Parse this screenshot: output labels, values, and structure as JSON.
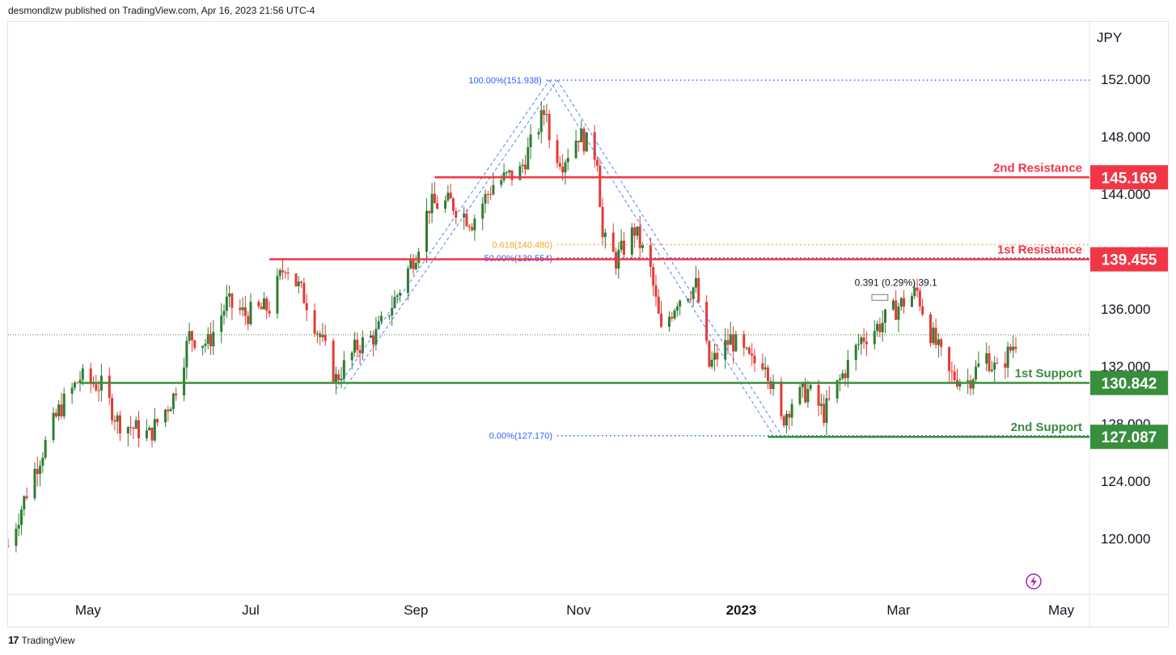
{
  "header": {
    "published": "desmondlzw published on TradingView.com, Apr 16, 2023 21:56 UTC-4"
  },
  "footer": {
    "brand": "TradingView",
    "logo_glyph": "17"
  },
  "chart_data": {
    "type": "candlestick",
    "currency_label": "JPY",
    "y_ticks": [
      "152.000",
      "148.000",
      "144.000",
      "140.000",
      "136.000",
      "132.000",
      "128.000",
      "124.000",
      "120.000"
    ],
    "y_tick_values": [
      152,
      148,
      144,
      140,
      136,
      132,
      128,
      124,
      120
    ],
    "ylim": [
      116.5,
      156.2
    ],
    "x_ticks": [
      "May",
      "Jul",
      "Sep",
      "Nov",
      "2023",
      "Mar",
      "May"
    ],
    "x_tick_bold": [
      false,
      false,
      false,
      false,
      true,
      false,
      false
    ],
    "x_tick_dates": [
      "2022-05-01",
      "2022-07-01",
      "2022-09-01",
      "2022-11-01",
      "2023-01-01",
      "2023-03-01",
      "2023-05-01"
    ],
    "levels": [
      {
        "label": "2nd Resistance",
        "value": "145.169",
        "price": 145.169,
        "color": "#f23645",
        "from": "2022-09-08",
        "kind": "resistance"
      },
      {
        "label": "1st Resistance",
        "value": "139.455",
        "price": 139.455,
        "color": "#f23645",
        "from": "2022-07-08",
        "kind": "resistance"
      },
      {
        "label": "1st Support",
        "value": "130.842",
        "price": 130.842,
        "color": "#388e3c",
        "from": "2022-04-28",
        "kind": "support"
      },
      {
        "label": "2nd Support",
        "value": "127.087",
        "price": 127.087,
        "color": "#388e3c",
        "from": "2023-01-11",
        "kind": "support"
      }
    ],
    "fib_levels": [
      {
        "label": "100.00%(151.938)",
        "price": 151.938,
        "color": "#2962ff",
        "from": "2022-10-20"
      },
      {
        "label": "0.618(140.480)",
        "price": 140.48,
        "color": "#f5a623",
        "from": "2022-10-24"
      },
      {
        "label": "50.00%(139.554)",
        "price": 139.554,
        "color": "#2962ff",
        "from": "2022-10-24"
      },
      {
        "label": "0.00%(127.170)",
        "price": 127.17,
        "color": "#2962ff",
        "from": "2022-10-24"
      }
    ],
    "fib_left_anchor_date": "2022-10-10",
    "trend_channel_1": {
      "from": [
        "2022-08-02",
        130.4
      ],
      "to": [
        "2022-10-21",
        151.94
      ]
    },
    "trend_channel_2": {
      "from": [
        "2022-10-21",
        151.94
      ],
      "to": [
        "2023-01-13",
        127.2
      ]
    },
    "last_price": 134.2,
    "measure_label": "0.391 (0.29%) 39.1",
    "measure_anchor": [
      "2023-02-28",
      137.6
    ],
    "measure_box": {
      "from": [
        "2023-02-19",
        136.6
      ],
      "to": [
        "2023-02-25",
        137.0
      ]
    },
    "range_start": "2022-04-01",
    "range_end": "2023-05-11",
    "anchors": [
      [
        "2022-04-01",
        119.5
      ],
      [
        "2022-04-10",
        124.3
      ],
      [
        "2022-04-20",
        128.9
      ],
      [
        "2022-04-28",
        131.2
      ],
      [
        "2022-05-06",
        130.6
      ],
      [
        "2022-05-12",
        128.2
      ],
      [
        "2022-05-24",
        127.2
      ],
      [
        "2022-06-02",
        129.9
      ],
      [
        "2022-06-08",
        134.1
      ],
      [
        "2022-06-15",
        133.6
      ],
      [
        "2022-06-22",
        136.4
      ],
      [
        "2022-06-29",
        135.6
      ],
      [
        "2022-07-08",
        136.1
      ],
      [
        "2022-07-14",
        139.2
      ],
      [
        "2022-07-22",
        136.5
      ],
      [
        "2022-08-02",
        131.1
      ],
      [
        "2022-08-10",
        133.4
      ],
      [
        "2022-08-17",
        134.2
      ],
      [
        "2022-08-25",
        137.0
      ],
      [
        "2022-09-01",
        140.0
      ],
      [
        "2022-09-06",
        143.2
      ],
      [
        "2022-09-14",
        143.4
      ],
      [
        "2022-09-22",
        142.1
      ],
      [
        "2022-09-30",
        144.7
      ],
      [
        "2022-10-10",
        145.6
      ],
      [
        "2022-10-20",
        150.1
      ],
      [
        "2022-10-21",
        147.6
      ],
      [
        "2022-10-26",
        146.3
      ],
      [
        "2022-11-01",
        148.2
      ],
      [
        "2022-11-08",
        146.6
      ],
      [
        "2022-11-10",
        140.9
      ],
      [
        "2022-11-15",
        139.4
      ],
      [
        "2022-11-22",
        141.5
      ],
      [
        "2022-11-28",
        138.6
      ],
      [
        "2022-12-02",
        134.3
      ],
      [
        "2022-12-08",
        136.7
      ],
      [
        "2022-12-15",
        137.6
      ],
      [
        "2022-12-20",
        132.0
      ],
      [
        "2022-12-28",
        133.9
      ],
      [
        "2023-01-05",
        132.2
      ],
      [
        "2023-01-10",
        132.5
      ],
      [
        "2023-01-16",
        128.1
      ],
      [
        "2023-01-20",
        129.6
      ],
      [
        "2023-01-26",
        130.3
      ],
      [
        "2023-02-01",
        128.7
      ],
      [
        "2023-02-08",
        131.4
      ],
      [
        "2023-02-15",
        133.9
      ],
      [
        "2023-02-22",
        134.9
      ],
      [
        "2023-03-01",
        136.2
      ],
      [
        "2023-03-08",
        137.2
      ],
      [
        "2023-03-12",
        134.8
      ],
      [
        "2023-03-20",
        131.4
      ],
      [
        "2023-03-27",
        131.0
      ],
      [
        "2023-04-03",
        132.7
      ],
      [
        "2023-04-07",
        131.6
      ],
      [
        "2023-04-14",
        133.8
      ]
    ],
    "candles_end": "2023-04-14"
  }
}
